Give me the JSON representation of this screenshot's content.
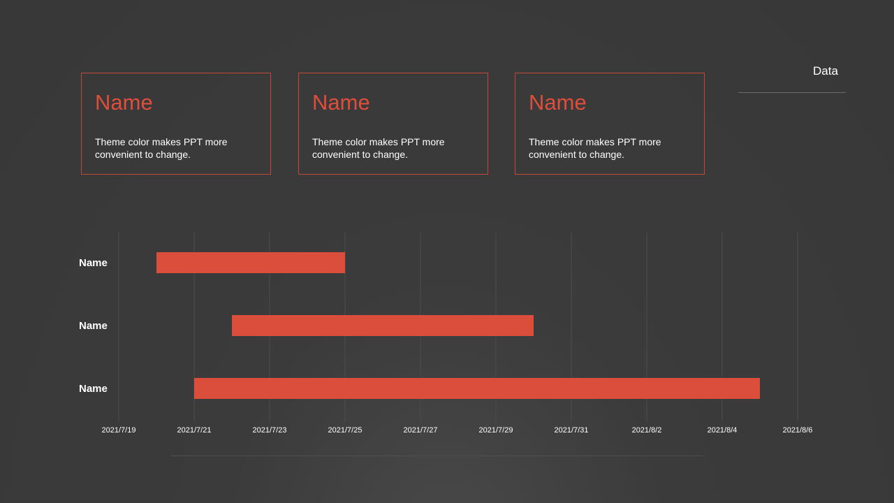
{
  "cards": [
    {
      "title": "Name",
      "text": "Theme color makes PPT more convenient  to change."
    },
    {
      "title": "Name",
      "text": "Theme color makes PPT more convenient  to change."
    },
    {
      "title": "Name",
      "text": "Theme color makes PPT more convenient  to change."
    }
  ],
  "data_label": "Data",
  "colors": {
    "accent": "#dc4e3c",
    "background": "#3a3a3a",
    "card_border": "#c0493a",
    "grid": "#4c4c4c"
  },
  "chart_data": {
    "type": "bar",
    "orientation": "horizontal-gantt",
    "categories": [
      "Name",
      "Name",
      "Name"
    ],
    "series": [
      {
        "values": [
          {
            "start": "2021-07-20",
            "end": "2021-07-25"
          },
          {
            "start": "2021-07-22",
            "end": "2021-07-30"
          },
          {
            "start": "2021-07-21",
            "end": "2021-08-05"
          }
        ]
      }
    ],
    "x_tick_labels": [
      "2021/7/19",
      "2021/7/21",
      "2021/7/23",
      "2021/7/25",
      "2021/7/27",
      "2021/7/29",
      "2021/7/31",
      "2021/8/2",
      "2021/8/4",
      "2021/8/6"
    ],
    "xlim": [
      "2021-07-19",
      "2021-08-06"
    ],
    "grid": true,
    "legend": "none"
  }
}
